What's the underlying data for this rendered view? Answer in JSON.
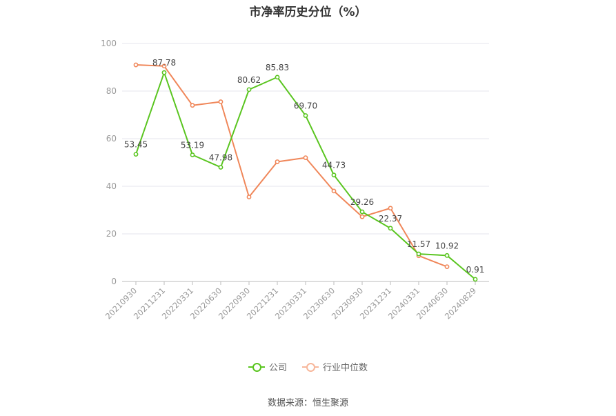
{
  "chart_data": {
    "type": "line",
    "title": "市净率历史分位（%）",
    "categories": [
      "20210930",
      "20211231",
      "20220331",
      "20220630",
      "20220930",
      "20221231",
      "20230331",
      "20230630",
      "20230930",
      "20231231",
      "20240331",
      "20240630",
      "20240829"
    ],
    "yticks": [
      "0",
      "20",
      "40",
      "60",
      "80",
      "100"
    ],
    "ylim": [
      0,
      100
    ],
    "grid": true,
    "legend_position": "bottom",
    "series": [
      {
        "name": "公司",
        "color": "#5ac520",
        "values": [
          53.45,
          87.78,
          53.19,
          47.98,
          80.62,
          85.83,
          69.7,
          44.73,
          29.26,
          22.37,
          11.57,
          10.92,
          0.91
        ],
        "labels": [
          "53.45",
          "87.78",
          "53.19",
          "47.98",
          "80.62",
          "85.83",
          "69.70",
          "44.73",
          "29.26",
          "22.37",
          "11.57",
          "10.92",
          "0.91"
        ]
      },
      {
        "name": "行业中位数",
        "color": "#f0875a",
        "values": [
          91.0,
          90.5,
          74.0,
          75.5,
          35.5,
          50.3,
          52.0,
          38.0,
          27.2,
          30.8,
          10.8,
          6.2,
          null
        ]
      }
    ]
  },
  "source_text": "数据来源：恒生聚源"
}
